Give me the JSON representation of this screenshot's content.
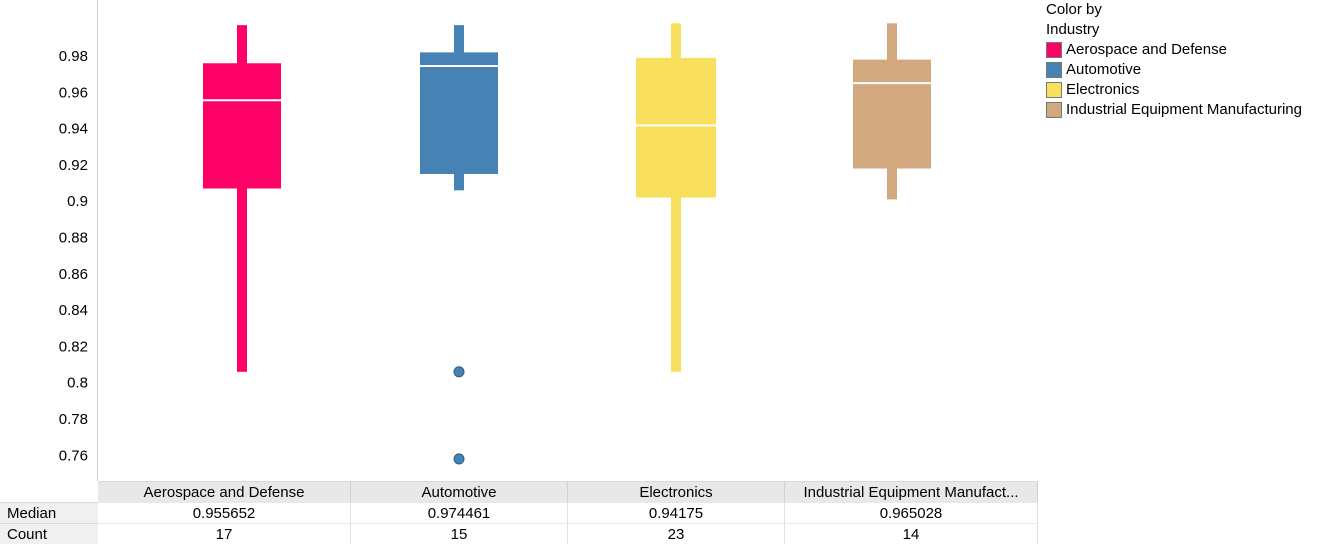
{
  "legend": {
    "title": "Color by\nIndustry",
    "items": [
      {
        "label": "Aerospace and Defense",
        "color": "#ff0066"
      },
      {
        "label": "Automotive",
        "color": "#4682b4"
      },
      {
        "label": "Electronics",
        "color": "#f8df5e"
      },
      {
        "label": "Industrial Equipment Manufacturing",
        "color": "#d2a97f"
      }
    ]
  },
  "summary": {
    "headers": [
      "Aerospace and Defense",
      "Automotive",
      "Electronics",
      "Industrial Equipment Manufact..."
    ],
    "median_label": "Median",
    "count_label": "Count",
    "medians": [
      "0.955652",
      "0.974461",
      "0.94175",
      "0.965028"
    ],
    "counts": [
      "17",
      "15",
      "23",
      "14"
    ]
  },
  "chart_data": {
    "type": "box",
    "categories": [
      "Aerospace and Defense",
      "Automotive",
      "Electronics",
      "Industrial Equipment Manufacturing"
    ],
    "colors": [
      "#ff0066",
      "#4682b4",
      "#f8df5e",
      "#d2a97f"
    ],
    "y_ticks": [
      "0.98",
      "0.96",
      "0.94",
      "0.92",
      "0.9",
      "0.88",
      "0.86",
      "0.84",
      "0.82",
      "0.8",
      "0.78",
      "0.76"
    ],
    "ylim": [
      0.745,
      1.0
    ],
    "series": [
      {
        "whisker_low": 0.806,
        "q1": 0.907,
        "median": 0.955652,
        "q3": 0.976,
        "whisker_high": 0.997,
        "outliers": []
      },
      {
        "whisker_low": 0.906,
        "q1": 0.915,
        "median": 0.974461,
        "q3": 0.982,
        "whisker_high": 0.997,
        "outliers": [
          0.806,
          0.758
        ]
      },
      {
        "whisker_low": 0.806,
        "q1": 0.902,
        "median": 0.94175,
        "q3": 0.979,
        "whisker_high": 0.998,
        "outliers": []
      },
      {
        "whisker_low": 0.901,
        "q1": 0.918,
        "median": 0.965028,
        "q3": 0.978,
        "whisker_high": 0.998,
        "outliers": []
      }
    ],
    "grid": false,
    "legend_position": "top-right"
  }
}
